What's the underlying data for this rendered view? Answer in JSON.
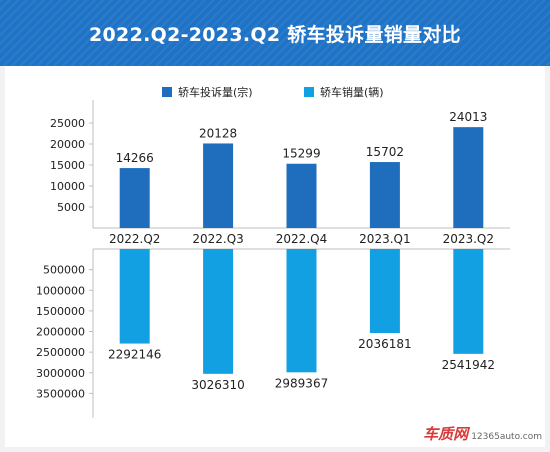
{
  "title": "2022.Q2-2023.Q2 轿车投诉量销量对比",
  "legend": [
    {
      "label": "轿车投诉量(宗)",
      "color": "#1f6dbd"
    },
    {
      "label": "轿车销量(辆)",
      "color": "#12a0e3"
    }
  ],
  "logo": {
    "text": "车质网",
    "url": "12365auto.com"
  },
  "chart_data": [
    {
      "type": "bar",
      "categories": [
        "2022.Q2",
        "2022.Q3",
        "2022.Q4",
        "2023.Q1",
        "2023.Q2"
      ],
      "series": [
        {
          "name": "轿车投诉量(宗)",
          "values": [
            14266,
            20128,
            15299,
            15702,
            24013
          ],
          "color": "#1f6dbd"
        }
      ],
      "ylim": [
        0,
        30000
      ],
      "yticks": [
        "5000",
        "10000",
        "15000",
        "20000",
        "25000"
      ],
      "ytick_values": [
        5000,
        10000,
        15000,
        20000,
        25000
      ],
      "data_labels": [
        "14266",
        "20128",
        "15299",
        "15702",
        "24013"
      ]
    },
    {
      "type": "bar",
      "categories": [
        "2022.Q2",
        "2022.Q3",
        "2022.Q4",
        "2023.Q1",
        "2023.Q2"
      ],
      "series": [
        {
          "name": "轿车销量(辆)",
          "values": [
            2292146,
            3026310,
            2989367,
            2036181,
            2541942
          ],
          "color": "#12a0e3"
        }
      ],
      "orientation": "downward",
      "ylim": [
        0,
        4000000
      ],
      "yticks": [
        "500000",
        "1000000",
        "1500000",
        "2000000",
        "2500000",
        "3000000",
        "3500000"
      ],
      "ytick_values": [
        500000,
        1000000,
        1500000,
        2000000,
        2500000,
        3000000,
        3500000
      ],
      "data_labels": [
        "2292146",
        "3026310",
        "2989367",
        "2036181",
        "2541942"
      ]
    }
  ]
}
